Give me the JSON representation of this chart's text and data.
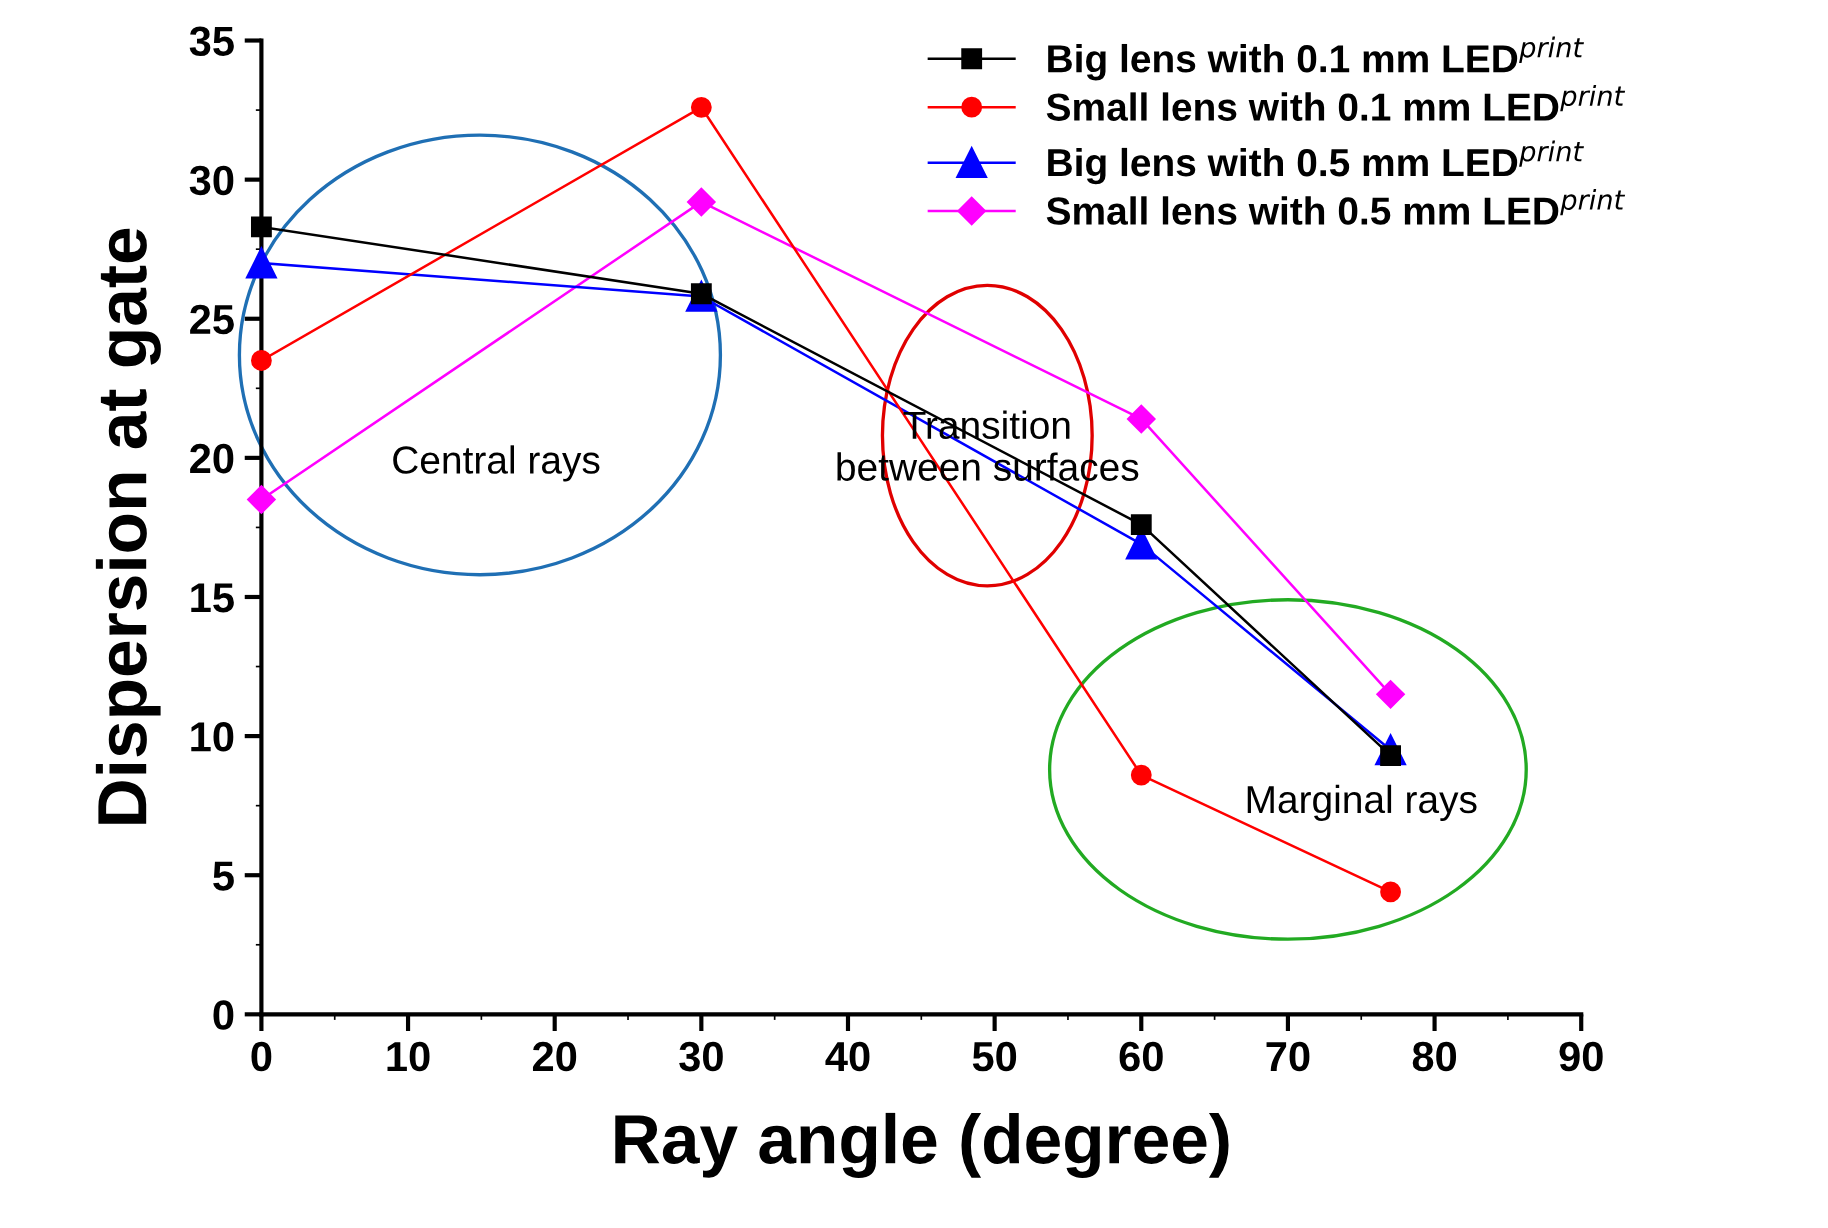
{
  "chart_data": {
    "type": "line",
    "xlabel": "Ray angle (degree)",
    "ylabel": "Dispersion at gate",
    "x": [
      0,
      30,
      60,
      77
    ],
    "series": [
      {
        "name": "Big lens with 0.1 mm LED$^{print}$",
        "color": "#000000",
        "marker": "square",
        "values": [
          28.3,
          25.9,
          17.6,
          9.3
        ]
      },
      {
        "name": "Small lens with 0.1 mm LED$^{print}$",
        "color": "#ff0000",
        "marker": "circle",
        "values": [
          23.5,
          32.6,
          8.6,
          4.4
        ]
      },
      {
        "name": "Big lens with 0.5 mm LED$^{print}$",
        "color": "#0000ff",
        "marker": "triangle",
        "values": [
          27.0,
          25.8,
          16.9,
          9.5
        ]
      },
      {
        "name": "Small lens with 0.5 mm LED$^{print}$",
        "color": "#ff00ff",
        "marker": "diamond",
        "values": [
          18.5,
          29.2,
          21.4,
          11.5
        ]
      }
    ],
    "xlim": [
      0,
      90
    ],
    "xticks": [
      0,
      10,
      20,
      30,
      40,
      50,
      60,
      70,
      80,
      90
    ],
    "ylim": [
      0,
      35
    ],
    "yticks": [
      0,
      5,
      10,
      15,
      20,
      25,
      30,
      35
    ],
    "grid": false,
    "legend": "top right",
    "line_style": "solid",
    "annotations": [
      "Central rays",
      "Transition\nbetween surfaces",
      "Marginal rays"
    ]
  }
}
